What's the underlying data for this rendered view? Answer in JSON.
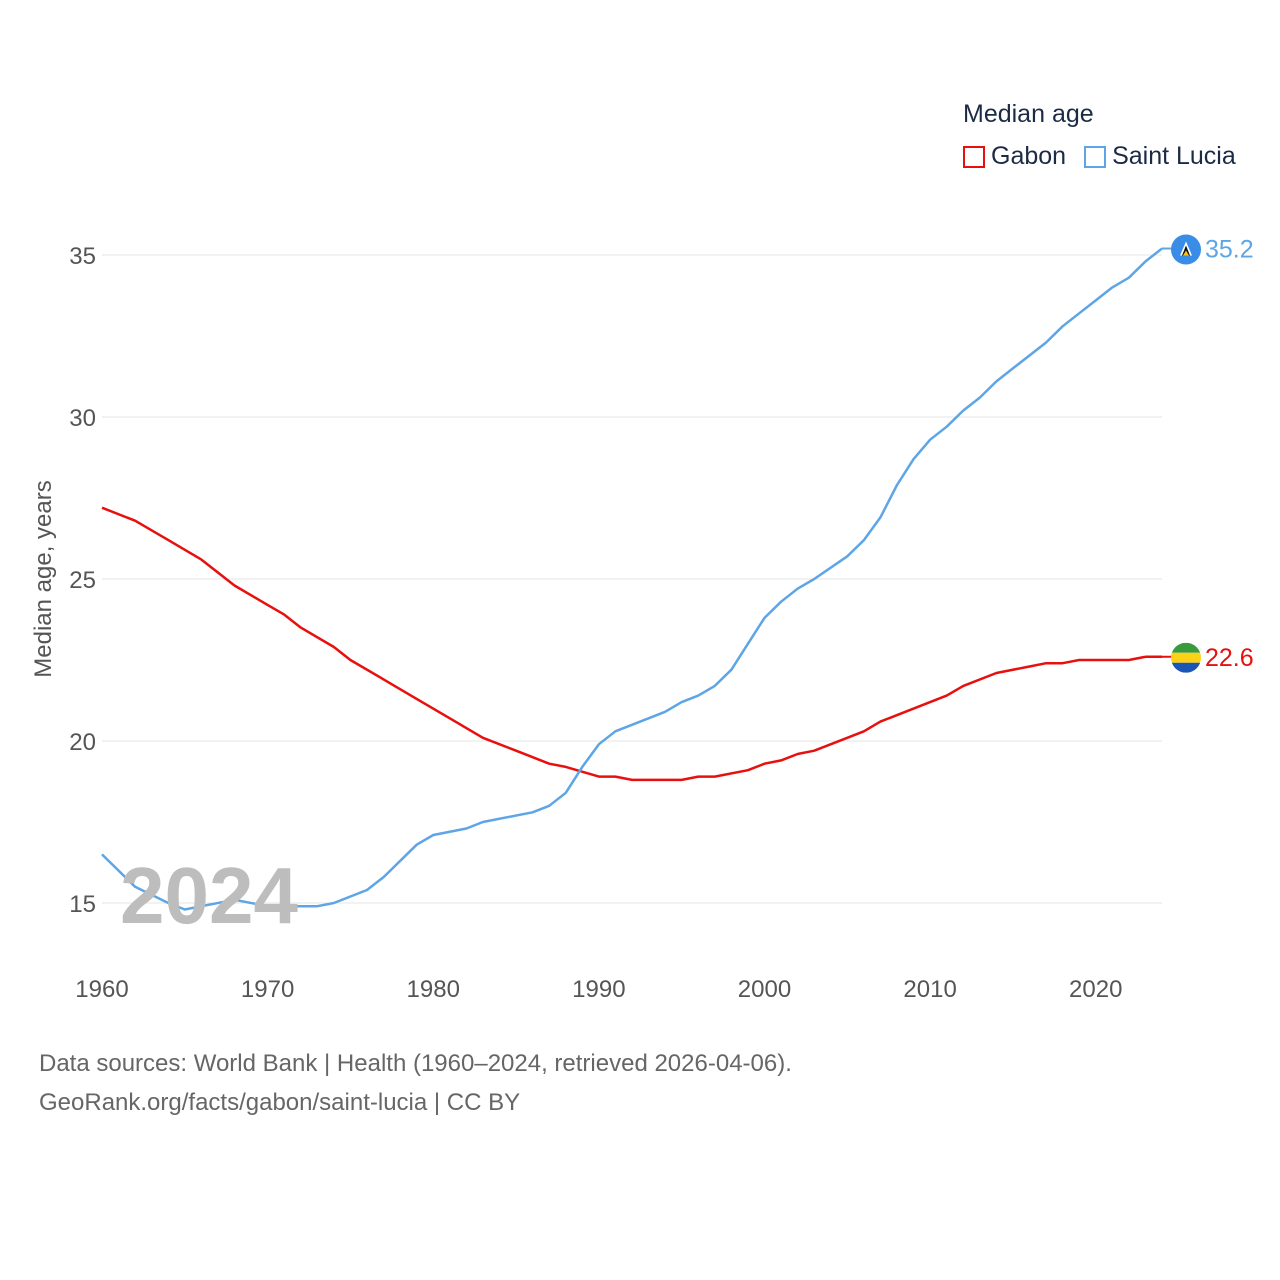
{
  "chart_data": {
    "type": "line",
    "legend_title": "Median age",
    "ylabel": "Median age, years",
    "xlim": [
      1960,
      2024
    ],
    "ylim": [
      13.5,
      36
    ],
    "yticks": [
      15,
      20,
      25,
      30,
      35
    ],
    "xticks": [
      1960,
      1970,
      1980,
      1990,
      2000,
      2010,
      2020
    ],
    "year_label": "2024",
    "series": [
      {
        "name": "Gabon",
        "color": "#e8100e",
        "end_label": "22.6",
        "flag": "gabon-flag",
        "x": [
          1960,
          1962,
          1964,
          1966,
          1968,
          1970,
          1971,
          1972,
          1974,
          1975,
          1977,
          1979,
          1981,
          1983,
          1985,
          1987,
          1988,
          1990,
          1991,
          1992,
          1995,
          1996,
          1997,
          1999,
          2000,
          2001,
          2002,
          2003,
          2005,
          2006,
          2007,
          2009,
          2011,
          2012,
          2014,
          2016,
          2017,
          2018,
          2019,
          2020,
          2022,
          2023,
          2024
        ],
        "y": [
          27.2,
          26.8,
          26.2,
          25.6,
          24.8,
          24.2,
          23.9,
          23.5,
          22.9,
          22.5,
          21.9,
          21.3,
          20.7,
          20.1,
          19.7,
          19.3,
          19.2,
          18.9,
          18.9,
          18.8,
          18.8,
          18.9,
          18.9,
          19.1,
          19.3,
          19.4,
          19.6,
          19.7,
          20.1,
          20.3,
          20.6,
          21.0,
          21.4,
          21.7,
          22.1,
          22.3,
          22.4,
          22.4,
          22.5,
          22.5,
          22.5,
          22.6,
          22.6
        ]
      },
      {
        "name": "Saint Lucia",
        "color": "#5da5e6",
        "end_label": "35.2",
        "flag": "saint-lucia-flag",
        "x": [
          1960,
          1962,
          1964,
          1965,
          1966,
          1968,
          1970,
          1971,
          1973,
          1974,
          1976,
          1977,
          1979,
          1980,
          1982,
          1983,
          1986,
          1987,
          1988,
          1989,
          1990,
          1991,
          1992,
          1994,
          1995,
          1996,
          1997,
          1998,
          1999,
          2000,
          2001,
          2002,
          2003,
          2005,
          2006,
          2007,
          2008,
          2009,
          2010,
          2011,
          2012,
          2013,
          2014,
          2015,
          2017,
          2018,
          2019,
          2020,
          2021,
          2022,
          2023,
          2024
        ],
        "y": [
          16.5,
          15.5,
          15.0,
          14.8,
          14.9,
          15.1,
          14.9,
          14.9,
          14.9,
          15.0,
          15.4,
          15.8,
          16.8,
          17.1,
          17.3,
          17.5,
          17.8,
          18.0,
          18.4,
          19.2,
          19.9,
          20.3,
          20.5,
          20.9,
          21.2,
          21.4,
          21.7,
          22.2,
          23.0,
          23.8,
          24.3,
          24.7,
          25.0,
          25.7,
          26.2,
          26.9,
          27.9,
          28.7,
          29.3,
          29.7,
          30.2,
          30.6,
          31.1,
          31.5,
          32.3,
          32.8,
          33.2,
          33.6,
          34.0,
          34.3,
          34.8,
          35.2
        ]
      }
    ]
  },
  "footer": {
    "source_line": "Data sources: World Bank | Health (1960–2024, retrieved 2026-04-06).",
    "url_line": "GeoRank.org/facts/gabon/saint-lucia | CC BY"
  }
}
